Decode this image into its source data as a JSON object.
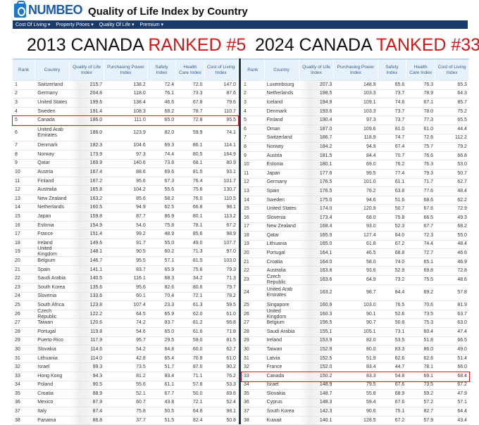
{
  "header": {
    "brand": "NUMBEO",
    "title": "Quality of Life Index by Country"
  },
  "nav": [
    "Cost Of Living ▾",
    "Property Prices ▾",
    "Quality Of Life ▾",
    "Premium ▾"
  ],
  "columns": [
    "Rank",
    "Country",
    "Quality of Life Index",
    "Purchasing Power Index",
    "Safety Index",
    "Health Care Index",
    "Cost of Living Index"
  ],
  "accent": "#d01818",
  "left": {
    "heading_black": "2013 CANADA ",
    "heading_red": "RANKED #5",
    "highlight_rank": 5,
    "rows": [
      [
        "1",
        "Switzerland",
        "215.7",
        "138.2",
        "72.4",
        "72.0",
        "147.0"
      ],
      [
        "2",
        "Germany",
        "204.8",
        "118.0",
        "76.1",
        "73.3",
        "87.6"
      ],
      [
        "3",
        "United States",
        "199.6",
        "138.4",
        "46.6",
        "67.8",
        "79.6"
      ],
      [
        "4",
        "Sweden",
        "191.4",
        "108.3",
        "68.2",
        "78.7",
        "110.7"
      ],
      [
        "5",
        "Canada",
        "186.0",
        "111.0",
        "65.0",
        "72.8",
        "95.5"
      ],
      [
        "6",
        "United Arab Emirates",
        "186.0",
        "123.9",
        "82.0",
        "59.9",
        "74.1"
      ],
      [
        "7",
        "Denmark",
        "182.3",
        "104.6",
        "69.3",
        "86.1",
        "114.1"
      ],
      [
        "8",
        "Norway",
        "173.9",
        "97.3",
        "74.4",
        "80.5",
        "164.9"
      ],
      [
        "9",
        "Qatar",
        "169.9",
        "140.6",
        "73.8",
        "68.1",
        "80.9"
      ],
      [
        "10",
        "Austria",
        "167.4",
        "88.6",
        "69.6",
        "81.5",
        "93.1"
      ],
      [
        "11",
        "Finland",
        "167.2",
        "95.6",
        "67.3",
        "76.4",
        "101.7"
      ],
      [
        "12",
        "Australia",
        "165.8",
        "104.2",
        "55.6",
        "75.6",
        "130.7"
      ],
      [
        "13",
        "New Zealand",
        "163.2",
        "85.6",
        "58.2",
        "76.0",
        "110.5"
      ],
      [
        "14",
        "Netherlands",
        "160.5",
        "94.9",
        "62.5",
        "66.8",
        "98.1"
      ],
      [
        "15",
        "Japan",
        "159.8",
        "87.7",
        "86.9",
        "80.1",
        "113.2"
      ],
      [
        "16",
        "Estonia",
        "154.9",
        "54.0",
        "75.8",
        "78.1",
        "67.2"
      ],
      [
        "17",
        "France",
        "151.4",
        "99.2",
        "48.9",
        "85.6",
        "98.9"
      ],
      [
        "18",
        "Ireland",
        "149.6",
        "91.7",
        "55.0",
        "49.0",
        "107.7"
      ],
      [
        "19",
        "United Kingdom",
        "148.1",
        "90.5",
        "60.2",
        "71.3",
        "97.0"
      ],
      [
        "20",
        "Belgium",
        "146.7",
        "95.5",
        "57.1",
        "81.5",
        "103.0"
      ],
      [
        "21",
        "Spain",
        "141.1",
        "83.7",
        "65.9",
        "75.6",
        "79.3"
      ],
      [
        "22",
        "Saudi Arabia",
        "140.5",
        "116.1",
        "68.3",
        "34.2",
        "71.3"
      ],
      [
        "23",
        "South Korea",
        "135.6",
        "95.6",
        "82.6",
        "80.6",
        "79.7"
      ],
      [
        "24",
        "Slovenia",
        "133.6",
        "60.1",
        "70.4",
        "72.1",
        "78.2"
      ],
      [
        "25",
        "South Africa",
        "123.8",
        "107.4",
        "23.3",
        "61.3",
        "59.5"
      ],
      [
        "26",
        "Czech Republic",
        "122.2",
        "64.5",
        "65.9",
        "62.0",
        "61.0"
      ],
      [
        "27",
        "Taiwan",
        "120.6",
        "74.2",
        "83.7",
        "81.2",
        "66.8"
      ],
      [
        "28",
        "Portugal",
        "119.8",
        "54.6",
        "65.0",
        "61.6",
        "71.8"
      ],
      [
        "29",
        "Puerto Rico",
        "117.9",
        "95.7",
        "29.5",
        "59.0",
        "81.5"
      ],
      [
        "30",
        "Slovakia",
        "114.6",
        "54.2",
        "64.8",
        "60.0",
        "62.7"
      ],
      [
        "31",
        "Lithuania",
        "114.0",
        "42.8",
        "65.4",
        "70.8",
        "61.0"
      ],
      [
        "32",
        "Israel",
        "99.3",
        "73.5",
        "51.7",
        "87.0",
        "90.2"
      ],
      [
        "33",
        "Hong Kong",
        "94.3",
        "81.2",
        "83.4",
        "71.1",
        "76.2"
      ],
      [
        "34",
        "Poland",
        "90.5",
        "55.6",
        "61.1",
        "57.8",
        "53.3"
      ],
      [
        "35",
        "Croatia",
        "88.9",
        "52.1",
        "67.7",
        "50.0",
        "69.6"
      ],
      [
        "36",
        "Mexico",
        "87.9",
        "60.7",
        "43.8",
        "72.1",
        "52.4"
      ],
      [
        "37",
        "Italy",
        "87.4",
        "75.8",
        "50.5",
        "64.8",
        "98.1"
      ],
      [
        "38",
        "Panama",
        "86.8",
        "37.7",
        "51.5",
        "82.4",
        "50.8"
      ]
    ]
  },
  "right": {
    "heading_black": "2024 CANADA ",
    "heading_red": "TANKED #33",
    "highlight_rank": 33,
    "rows": [
      [
        "1",
        "Luxembourg",
        "207.3",
        "148.9",
        "65.6",
        "76.3",
        "65.3"
      ],
      [
        "2",
        "Netherlands",
        "198.5",
        "103.3",
        "73.7",
        "78.9",
        "64.3"
      ],
      [
        "3",
        "Iceland",
        "194.9",
        "109.1",
        "74.6",
        "67.1",
        "85.7"
      ],
      [
        "4",
        "Denmark",
        "193.6",
        "103.3",
        "73.7",
        "78.0",
        "75.2"
      ],
      [
        "5",
        "Finland",
        "190.4",
        "97.3",
        "73.7",
        "77.3",
        "65.5"
      ],
      [
        "6",
        "Oman",
        "187.0",
        "109.6",
        "81.0",
        "61.0",
        "44.4"
      ],
      [
        "7",
        "Switzerland",
        "186.7",
        "118.9",
        "74.7",
        "72.6",
        "112.2"
      ],
      [
        "8",
        "Norway",
        "184.2",
        "94.9",
        "67.4",
        "75.7",
        "79.2"
      ],
      [
        "9",
        "Austria",
        "181.5",
        "84.4",
        "70.7",
        "76.6",
        "66.8"
      ],
      [
        "10",
        "Estonia",
        "180.1",
        "69.0",
        "76.2",
        "76.3",
        "53.0"
      ],
      [
        "11",
        "Japan",
        "177.6",
        "99.5",
        "77.4",
        "79.3",
        "50.7"
      ],
      [
        "12",
        "Germany",
        "176.5",
        "101.0",
        "61.1",
        "71.7",
        "62.7"
      ],
      [
        "13",
        "Spain",
        "176.5",
        "78.2",
        "63.8",
        "77.6",
        "48.4"
      ],
      [
        "14",
        "Sweden",
        "175.0",
        "94.6",
        "51.6",
        "68.6",
        "62.2"
      ],
      [
        "15",
        "United States",
        "174.0",
        "120.9",
        "50.7",
        "67.6",
        "72.9"
      ],
      [
        "16",
        "Slovenia",
        "173.4",
        "68.0",
        "75.8",
        "66.5",
        "49.3"
      ],
      [
        "17",
        "New Zealand",
        "168.4",
        "93.0",
        "52.3",
        "67.7",
        "68.2"
      ],
      [
        "18",
        "Qatar",
        "165.9",
        "127.4",
        "84.0",
        "72.3",
        "55.0"
      ],
      [
        "19",
        "Lithuania",
        "165.0",
        "61.8",
        "67.2",
        "74.4",
        "48.4"
      ],
      [
        "20",
        "Portugal",
        "164.1",
        "46.5",
        "68.8",
        "72.7",
        "46.6"
      ],
      [
        "21",
        "Croatia",
        "164.0",
        "58.0",
        "74.0",
        "65.1",
        "46.9"
      ],
      [
        "22",
        "Australia",
        "163.8",
        "93.6",
        "52.9",
        "69.8",
        "72.8"
      ],
      [
        "23",
        "Czech Republic",
        "163.6",
        "64.9",
        "73.2",
        "75.5",
        "48.6"
      ],
      [
        "24",
        "United Arab Emirates",
        "163.2",
        "98.7",
        "84.4",
        "69.2",
        "57.8"
      ],
      [
        "25",
        "Singapore",
        "160.9",
        "103.0",
        "76.5",
        "70.6",
        "81.9"
      ],
      [
        "26",
        "United Kingdom",
        "160.3",
        "90.1",
        "52.6",
        "73.5",
        "63.7"
      ],
      [
        "27",
        "Belgium",
        "156.5",
        "90.7",
        "50.8",
        "75.3",
        "63.0"
      ],
      [
        "28",
        "Saudi Arabia",
        "155.1",
        "105.1",
        "73.1",
        "60.4",
        "47.4"
      ],
      [
        "29",
        "Ireland",
        "153.9",
        "82.0",
        "53.5",
        "51.8",
        "66.5"
      ],
      [
        "30",
        "Taiwan",
        "152.9",
        "80.0",
        "83.3",
        "86.0",
        "49.0"
      ],
      [
        "31",
        "Latvia",
        "152.5",
        "51.9",
        "62.6",
        "62.6",
        "51.4"
      ],
      [
        "32",
        "France",
        "152.0",
        "83.4",
        "44.7",
        "78.1",
        "66.0"
      ],
      [
        "33",
        "Canada",
        "150.2",
        "83.3",
        "54.8",
        "69.1",
        "68.4"
      ],
      [
        "34",
        "Israel",
        "148.9",
        "79.5",
        "67.6",
        "73.5",
        "67.2"
      ],
      [
        "35",
        "Slovakia",
        "148.7",
        "55.8",
        "68.9",
        "59.2",
        "47.9"
      ],
      [
        "36",
        "Cyprus",
        "148.3",
        "59.4",
        "67.6",
        "57.2",
        "57.1"
      ],
      [
        "37",
        "South Korea",
        "142.3",
        "90.6",
        "75.1",
        "82.7",
        "64.4"
      ],
      [
        "38",
        "Kuwait",
        "140.1",
        "128.5",
        "67.2",
        "57.9",
        "43.4"
      ]
    ]
  }
}
